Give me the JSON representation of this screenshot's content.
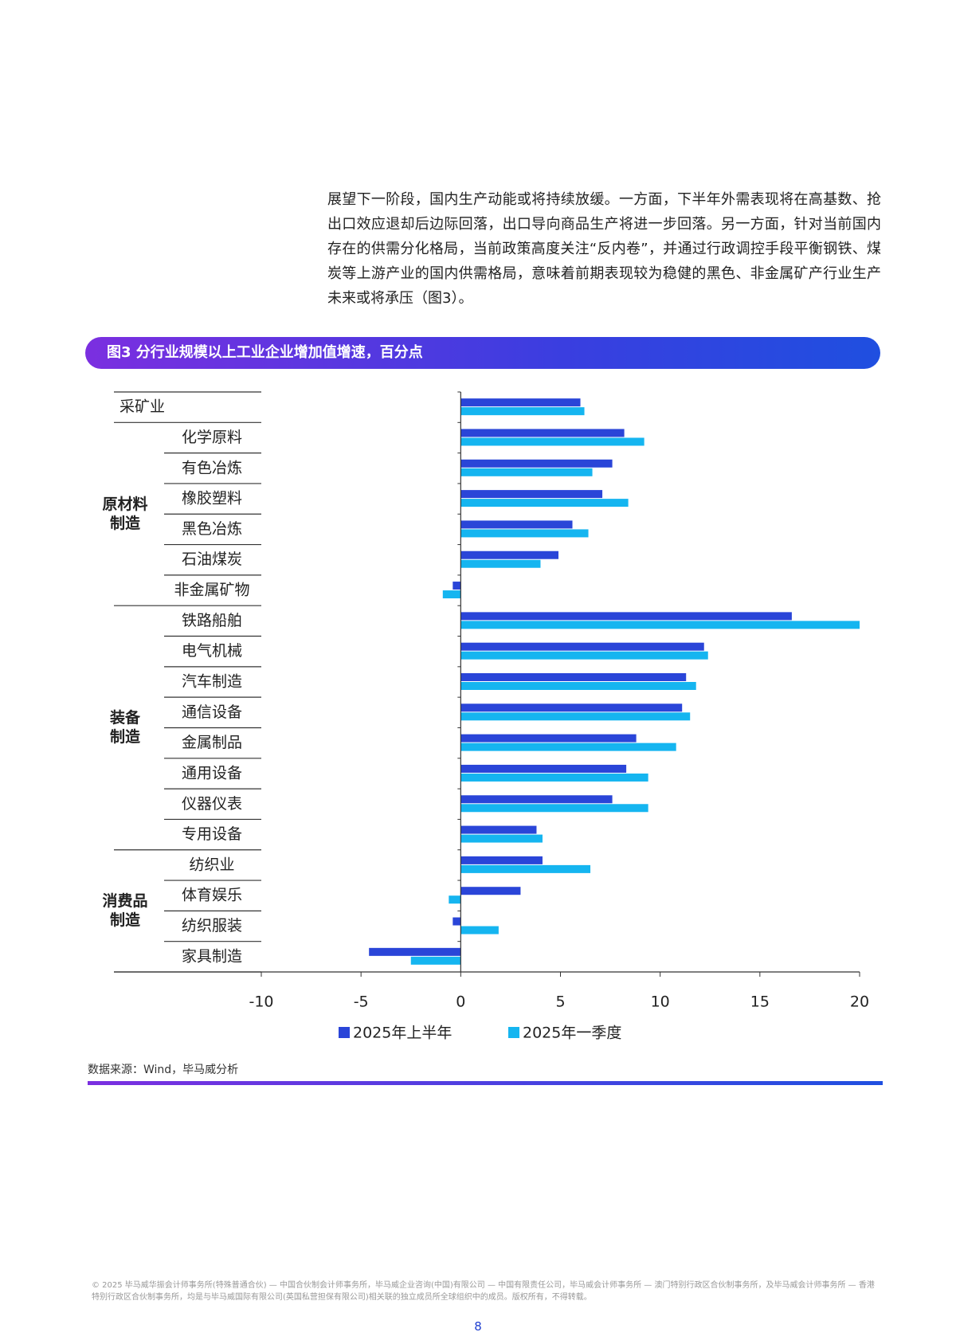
{
  "paragraph": "展望下一阶段，国内生产动能或将持续放缓。一方面，下半年外需表现将在高基数、抢出口效应退却后边际回落，出口导向商品生产将进一步回落。另一方面，针对当前国内存在的供需分化格局，当前政策高度关注“反内卷”，并通过行政调控手段平衡钢铁、煤炭等上游产业的国内供需格局，意味着前期表现较为稳健的黑色、非金属矿产行业生产未来或将承压（图3）。",
  "chart_data": {
    "type": "hbar",
    "title": "图3 分行业规模以上工业企业增加值增速，百分点",
    "categories": [
      "采矿业",
      "化学原料",
      "有色冶炼",
      "橡胶塑料",
      "黑色冶炼",
      "石油煤炭",
      "非金属矿物",
      "铁路船舶",
      "电气机械",
      "汽车制造",
      "通信设备",
      "金属制品",
      "通用设备",
      "仪器仪表",
      "专用设备",
      "纺织业",
      "体育娱乐",
      "纺织服装",
      "家具制造"
    ],
    "groups": [
      {
        "label": [
          "原材料",
          "制造"
        ]
      },
      {
        "label": [
          "装备",
          "制造"
        ]
      },
      {
        "label": [
          "消费品",
          "制造"
        ]
      }
    ],
    "series": [
      {
        "name": "2025年上半年",
        "color": "#2a45d8",
        "values": [
          6.0,
          8.2,
          7.6,
          7.1,
          5.6,
          4.9,
          -0.4,
          16.6,
          12.2,
          11.3,
          11.1,
          8.8,
          8.3,
          7.6,
          3.8,
          4.1,
          3.0,
          -0.4,
          -4.6
        ]
      },
      {
        "name": "2025年一季度",
        "color": "#15b5f0",
        "values": [
          6.2,
          9.2,
          6.6,
          8.4,
          6.4,
          4.0,
          -0.9,
          20.0,
          12.4,
          11.8,
          11.5,
          10.8,
          9.4,
          9.4,
          4.1,
          6.5,
          -0.6,
          1.9,
          -2.5
        ]
      }
    ],
    "xlim": [
      -10,
      20
    ],
    "xticks": [
      -10,
      -5,
      0,
      5,
      10,
      15,
      20
    ]
  },
  "source": "数据来源：Wind，毕马威分析",
  "footer": "© 2025 毕马威华振会计师事务所(特殊普通合伙) — 中国合伙制会计师事务所，毕马威企业咨询(中国)有限公司 — 中国有限责任公司，毕马威会计师事务所 — 澳门特别行政区合伙制事务所，及毕马威会计师事务所 — 香港特别行政区合伙制事务所，均是与毕马威国际有限公司(英国私营担保有限公司)相关联的独立成员所全球组织中的成员。版权所有，不得转载。",
  "page_number": "8"
}
